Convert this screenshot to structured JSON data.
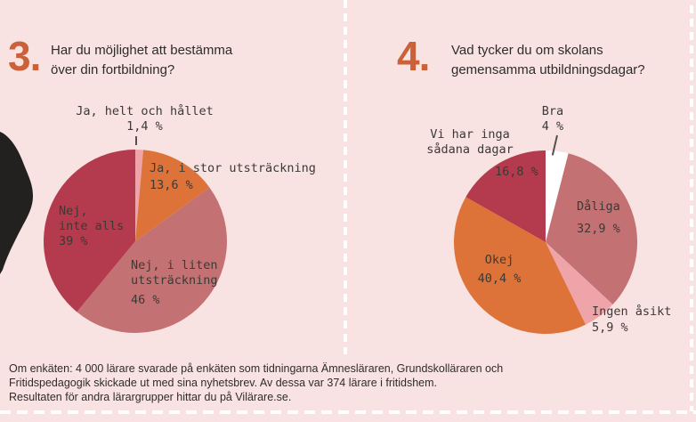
{
  "background": "#f8e3e2",
  "accent_orange": "#ca6138",
  "divider_color": "#ffffff",
  "questions": [
    {
      "number": "3.",
      "title": "Har du möjlighet att bestämma\növer din fortbildning?"
    },
    {
      "number": "4.",
      "title": "Vad tycker du om skolans\ngemensamma utbildningsdagar?"
    }
  ],
  "chart_data": [
    {
      "type": "pie",
      "question": "Har du möjlighet att bestämma över din fortbildning?",
      "start_angle_deg": 0,
      "direction": "clockwise",
      "slices": [
        {
          "label": "Ja, helt och hållet",
          "label_display": "Ja, helt och hållet",
          "value_pct": 1.4,
          "value_text": "1,4 %",
          "color": "#efa4aa"
        },
        {
          "label": "Ja, i stor utsträckning",
          "label_display": "Ja, i stor utsträckning",
          "value_pct": 13.6,
          "value_text": "13,6 %",
          "color": "#dd7338"
        },
        {
          "label": "Nej, i liten utsträckning",
          "label_display": "Nej, i liten\nutsträckning",
          "value_pct": 46,
          "value_text": "46 %",
          "color": "#c47173"
        },
        {
          "label": "Nej, inte alls",
          "label_display": "Nej,\ninte alls",
          "value_pct": 39,
          "value_text": "39 %",
          "color": "#b43a4d"
        }
      ]
    },
    {
      "type": "pie",
      "question": "Vad tycker du om skolans gemensamma utbildningsdagar?",
      "start_angle_deg": 0,
      "direction": "clockwise",
      "slices": [
        {
          "label": "Bra",
          "label_display": "Bra",
          "value_pct": 4,
          "value_text": "4 %",
          "color": "#ffffff"
        },
        {
          "label": "Dåliga",
          "label_display": "Dåliga",
          "value_pct": 32.9,
          "value_text": "32,9 %",
          "color": "#c47173"
        },
        {
          "label": "Ingen åsikt",
          "label_display": "Ingen åsikt",
          "value_pct": 5.9,
          "value_text": "5,9 %",
          "color": "#efa4aa"
        },
        {
          "label": "Okej",
          "label_display": "Okej",
          "value_pct": 40.4,
          "value_text": "40,4 %",
          "color": "#dd7338"
        },
        {
          "label": "Vi har inga sådana dagar",
          "label_display": "Vi har inga\nsådana dagar",
          "value_pct": 16.8,
          "value_text": "16,8 %",
          "color": "#b43a4d"
        }
      ]
    }
  ],
  "footer": {
    "text": "Om enkäten: 4 000 lärare svarade på enkäten som tidningarna Ämnesläraren, Grundskolläraren och\nFritidspedagogik skickade ut med sina nyhetsbrev. Av dessa var 374 lärare i fritidshem.\nResultaten för andra lärargrupper hittar du på Vilärare.se."
  }
}
